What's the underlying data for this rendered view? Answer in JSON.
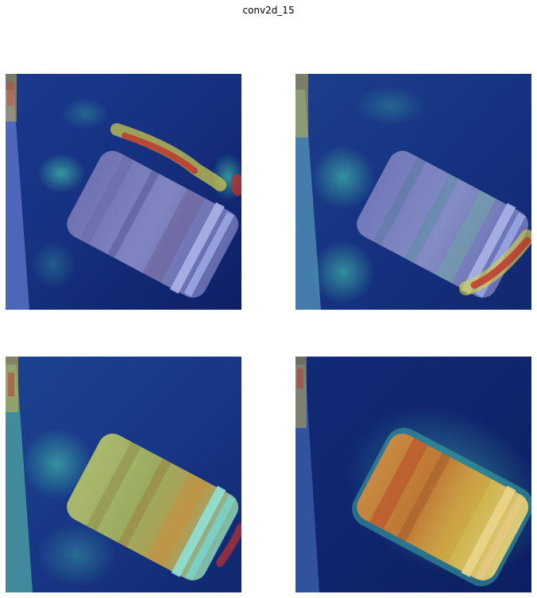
{
  "figure": {
    "title": "conv2d_15"
  },
  "colors": {
    "background_dark": "#0f1f6b",
    "background_mid": "#1e3a8a",
    "cylinder_base": "#8a8fc8",
    "ring_light": "#a9b2e8",
    "heat_low": "#2a4fa8",
    "heat_mid": "#3fb6a8",
    "heat_high": "#d6d04a",
    "heat_peak": "#c2302b"
  },
  "panels": [
    {
      "id": "panel-1",
      "activation": "edge-top"
    },
    {
      "id": "panel-2",
      "activation": "edge-bottom-right"
    },
    {
      "id": "panel-3",
      "activation": "object-body"
    },
    {
      "id": "panel-4",
      "activation": "object-body-strong"
    }
  ]
}
